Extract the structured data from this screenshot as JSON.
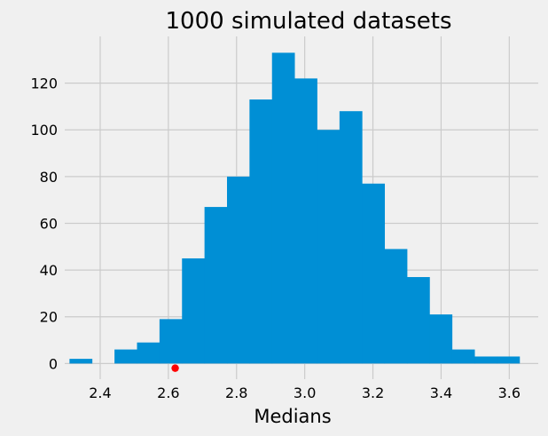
{
  "chart_data": {
    "type": "bar",
    "title": "1000 simulated datasets",
    "xlabel": "Medians",
    "ylabel": "",
    "xlim": [
      2.296,
      3.685
    ],
    "ylim": [
      -6.7,
      140
    ],
    "xticks": [
      "2.4",
      "2.6",
      "2.8",
      "3.0",
      "3.2",
      "3.4",
      "3.6"
    ],
    "yticks": [
      "0",
      "20",
      "40",
      "60",
      "80",
      "100",
      "120"
    ],
    "grid": true,
    "bins": {
      "edges": [
        2.31,
        2.376,
        2.442,
        2.508,
        2.574,
        2.64,
        2.706,
        2.772,
        2.838,
        2.904,
        2.97,
        3.036,
        3.102,
        3.168,
        3.234,
        3.3,
        3.366,
        3.432,
        3.498,
        3.564,
        3.63
      ],
      "counts": [
        2,
        0,
        6,
        9,
        19,
        45,
        67,
        80,
        113,
        133,
        122,
        100,
        108,
        77,
        49,
        37,
        21,
        6,
        3,
        3
      ]
    },
    "marker": {
      "x": 2.62,
      "y": -2,
      "color": "#ff0000"
    },
    "colors": {
      "bar": "#008fd5",
      "background": "#f0f0f0",
      "grid": "#cbcbcb"
    }
  }
}
